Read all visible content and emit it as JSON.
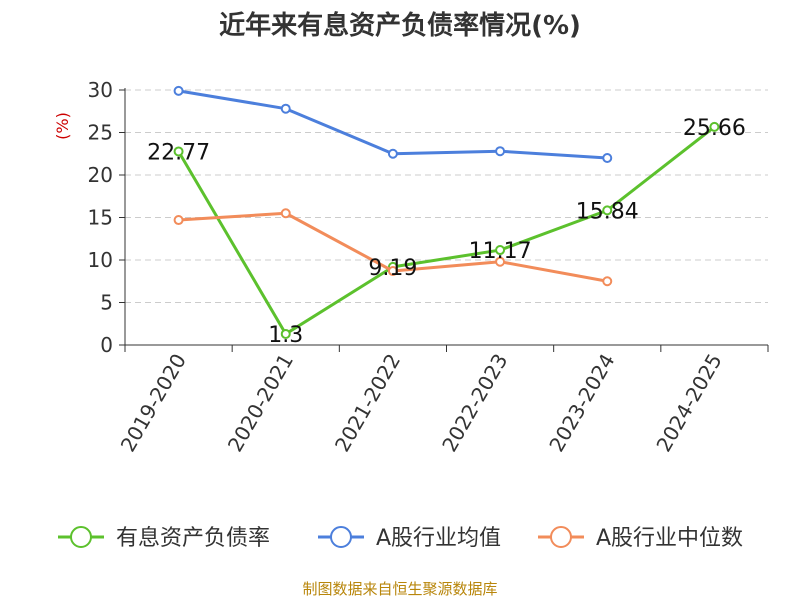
{
  "colors": {
    "series_1": "#5cc12d",
    "series_2": "#4c7fdc",
    "series_3": "#f28c5a",
    "grid": "#cccccc",
    "axis": "#333333"
  },
  "footer": "制图数据来自恒生聚源数据库",
  "chart_data": {
    "type": "line",
    "title": "近年来有息资产负债率情况(%)",
    "ylabel": "(%)",
    "xlabel": "",
    "categories": [
      "2019-2020",
      "2020-2021",
      "2021-2022",
      "2022-2023",
      "2023-2024",
      "2024-2025"
    ],
    "ylim": [
      0,
      30
    ],
    "yticks": [
      0,
      5,
      10,
      15,
      20,
      25,
      30
    ],
    "grid": "horizontal dashed",
    "legend_position": "bottom",
    "series": [
      {
        "name": "有息资产负债率",
        "values": [
          22.77,
          1.3,
          9.19,
          11.17,
          15.84,
          25.66
        ],
        "labels": [
          "22.77",
          "1.3",
          "9.19",
          "11.17",
          "15.84",
          "25.66"
        ]
      },
      {
        "name": "A股行业均值",
        "values": [
          29.9,
          27.8,
          22.5,
          22.8,
          22.0,
          null
        ]
      },
      {
        "name": "A股行业中位数",
        "values": [
          14.7,
          15.5,
          8.7,
          9.8,
          7.5,
          null
        ]
      }
    ]
  }
}
